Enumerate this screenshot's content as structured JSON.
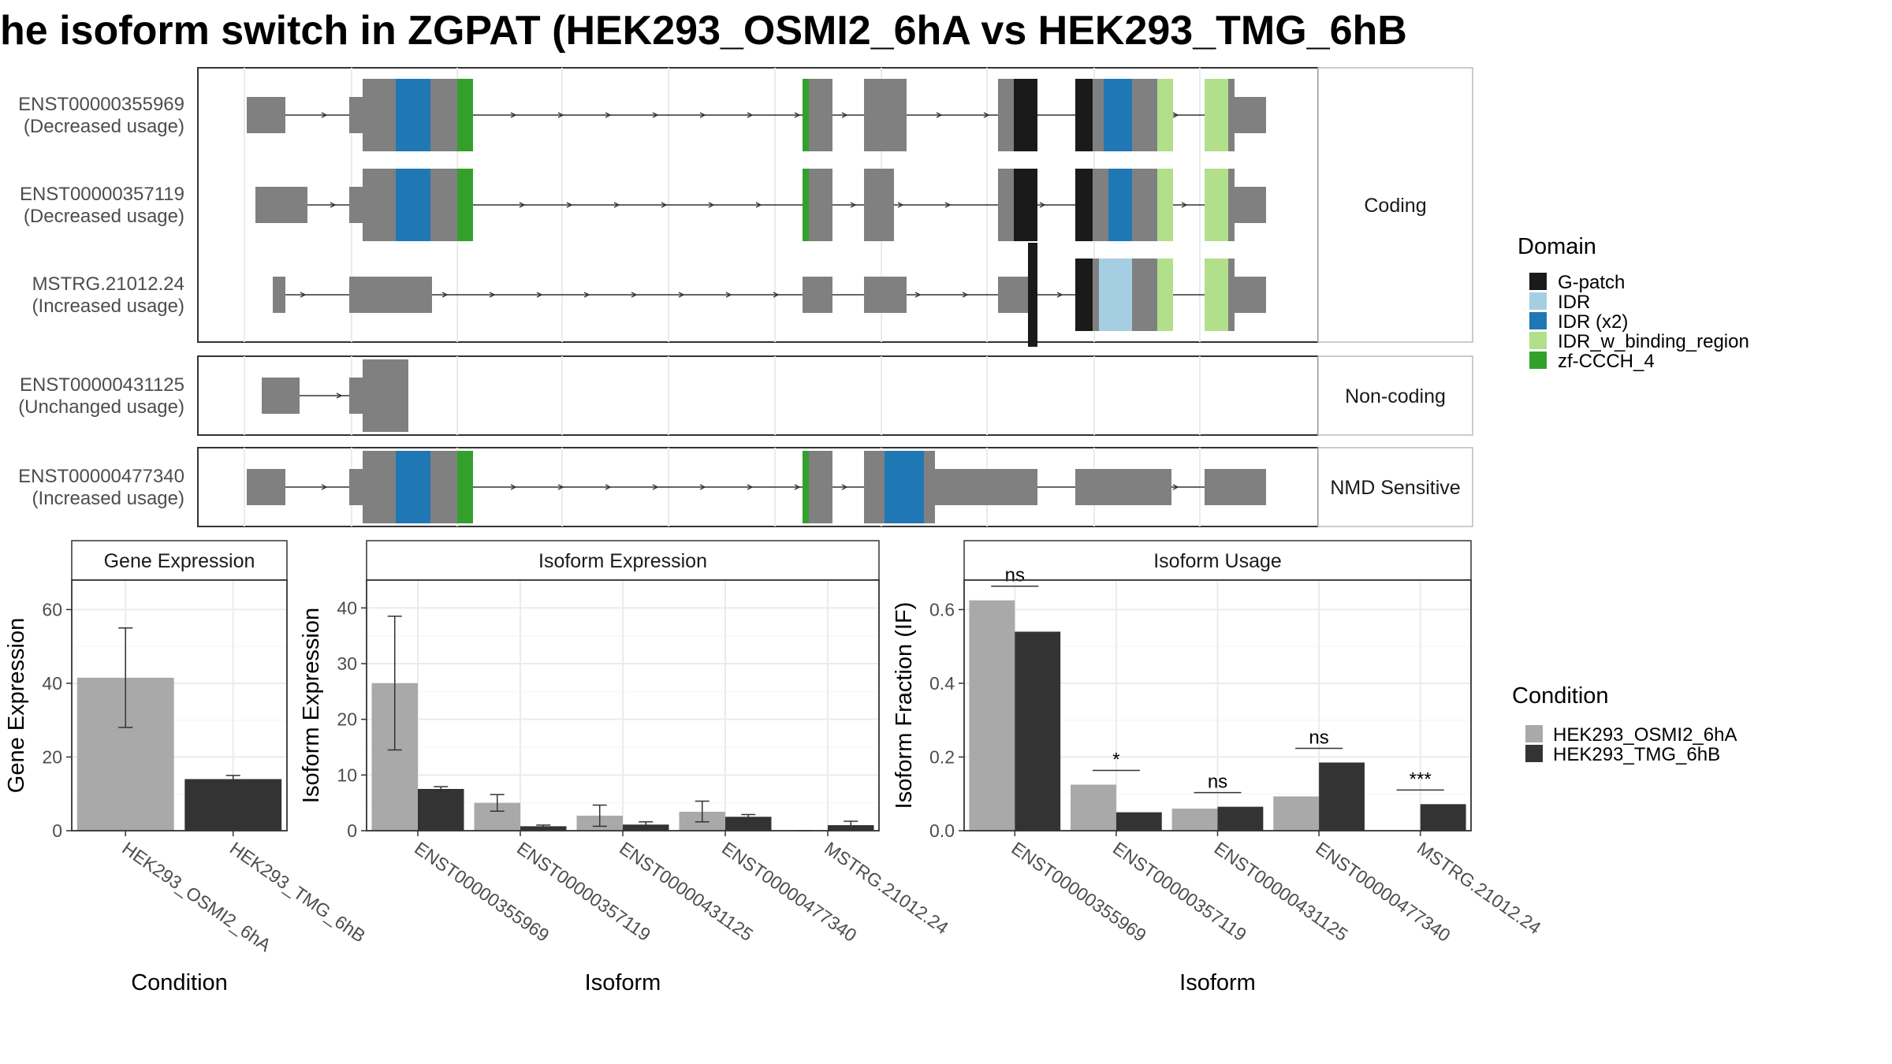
{
  "title": "he isoform switch in ZGPAT (HEK293_OSMI2_6hA vs HEK293_TMG_6hB",
  "structure": {
    "isoforms": [
      {
        "id": "ENST00000355969",
        "usage": "(Decreased usage)",
        "group": "Coding"
      },
      {
        "id": "ENST00000357119",
        "usage": "(Decreased usage)",
        "group": "Coding"
      },
      {
        "id": "MSTRG.21012.24",
        "usage": "(Increased usage)",
        "group": "Coding"
      },
      {
        "id": "ENST00000431125",
        "usage": "(Unchanged usage)",
        "group": "Non-coding"
      },
      {
        "id": "ENST00000477340",
        "usage": "(Increased usage)",
        "group": "NMD Sensitive"
      }
    ],
    "groups": [
      "Coding",
      "Non-coding",
      "NMD Sensitive"
    ]
  },
  "domain_legend": {
    "title": "Domain",
    "items": [
      {
        "label": "G-patch",
        "color": "#1a1a1a"
      },
      {
        "label": "IDR",
        "color": "#a6cee3"
      },
      {
        "label": "IDR (x2)",
        "color": "#1f78b4"
      },
      {
        "label": "IDR_w_binding_region",
        "color": "#b2df8a"
      },
      {
        "label": "zf-CCCH_4",
        "color": "#33a02c"
      }
    ]
  },
  "condition_legend": {
    "title": "Condition",
    "items": [
      {
        "label": "HEK293_OSMI2_6hA",
        "color": "#a9a9a9"
      },
      {
        "label": "HEK293_TMG_6hB",
        "color": "#333333"
      }
    ]
  },
  "chart_data": [
    {
      "type": "bar",
      "title": "Gene Expression",
      "xlabel": "Condition",
      "ylabel": "Gene Expression",
      "ylim": [
        0,
        68
      ],
      "yticks": [
        0,
        20,
        40,
        60
      ],
      "categories": [
        "HEK293_OSMI2_6hA",
        "HEK293_TMG_6hB"
      ],
      "values": [
        41.5,
        14
      ],
      "errors": [
        [
          28,
          55
        ],
        [
          13,
          15
        ]
      ],
      "colors": [
        "#a9a9a9",
        "#333333"
      ]
    },
    {
      "type": "bar",
      "title": "Isoform Expression",
      "xlabel": "Isoform",
      "ylabel": "Isoform Expression",
      "ylim": [
        0,
        45
      ],
      "yticks": [
        0,
        10,
        20,
        30,
        40
      ],
      "categories": [
        "ENST00000355969",
        "ENST00000357119",
        "ENST00000431125",
        "ENST00000477340",
        "MSTRG.21012.24"
      ],
      "series": [
        {
          "name": "HEK293_OSMI2_6hA",
          "values": [
            26.5,
            5,
            2.7,
            3.4,
            0
          ],
          "errors": [
            [
              14.5,
              38.5
            ],
            [
              3.5,
              6.5
            ],
            [
              0.8,
              4.6
            ],
            [
              1.6,
              5.3
            ],
            [
              0,
              0
            ]
          ]
        },
        {
          "name": "HEK293_TMG_6hB",
          "values": [
            7.5,
            0.8,
            1.1,
            2.5,
            1
          ],
          "errors": [
            [
              7.1,
              7.9
            ],
            [
              0.6,
              1.0
            ],
            [
              0.6,
              1.6
            ],
            [
              2.1,
              2.9
            ],
            [
              0.4,
              1.7
            ]
          ]
        }
      ]
    },
    {
      "type": "bar",
      "title": "Isoform Usage",
      "xlabel": "Isoform",
      "ylabel": "Isoform Fraction (IF)",
      "ylim": [
        0,
        0.68
      ],
      "yticks": [
        "0.0",
        "0.2",
        "0.4",
        "0.6"
      ],
      "categories": [
        "ENST00000355969",
        "ENST00000357119",
        "ENST00000431125",
        "ENST00000477340",
        "MSTRG.21012.24"
      ],
      "series": [
        {
          "name": "HEK293_OSMI2_6hA",
          "values": [
            0.625,
            0.125,
            0.06,
            0.093,
            0
          ]
        },
        {
          "name": "HEK293_TMG_6hB",
          "values": [
            0.54,
            0.05,
            0.065,
            0.185,
            0.072
          ]
        }
      ],
      "significance": [
        "ns",
        "*",
        "ns",
        "ns",
        "***"
      ]
    }
  ]
}
